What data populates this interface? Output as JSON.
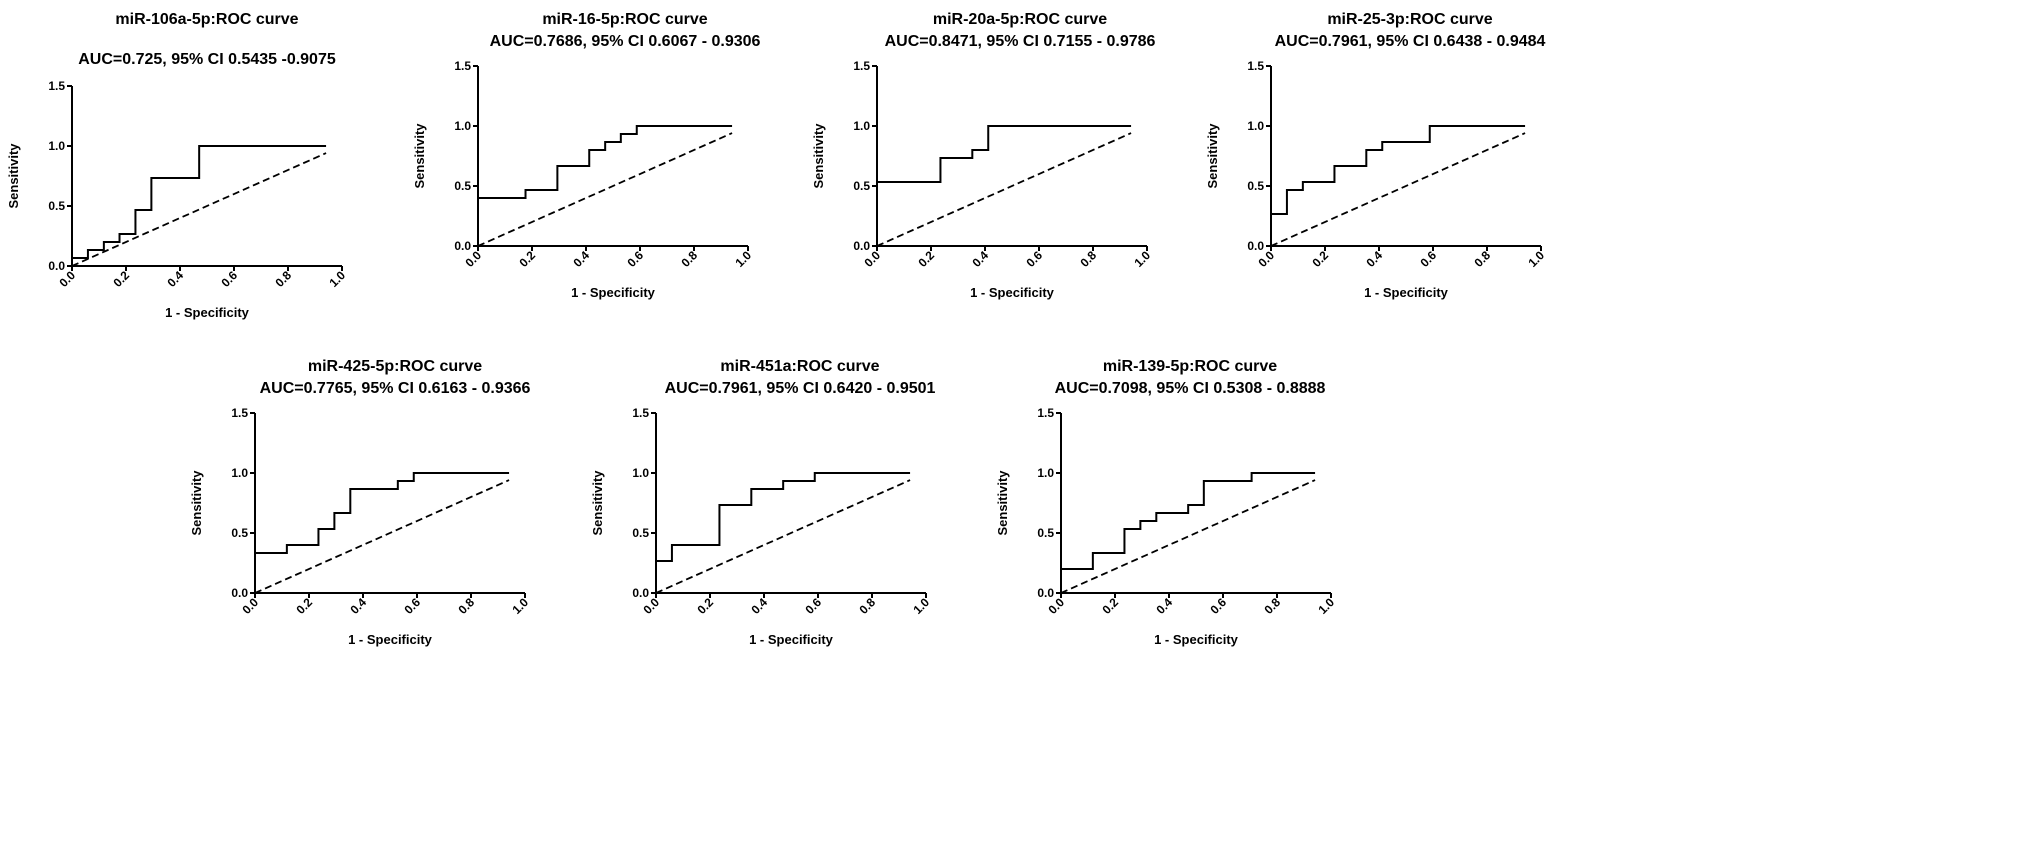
{
  "chart_data": [
    {
      "type": "line",
      "title": "miR-106a-5p:ROC curve",
      "subtitle": "AUC=0.725, 95% CI 0.5435 -0.9075",
      "xlabel": "1 - Specificity",
      "ylabel": "Sensitivity",
      "xlim": [
        0,
        1.0
      ],
      "ylim": [
        0,
        1.5
      ],
      "xticks": [
        "0.0",
        "0.2",
        "0.4",
        "0.6",
        "0.8",
        "1.0"
      ],
      "yticks": [
        "0.0",
        "0.5",
        "1.0",
        "1.5"
      ],
      "roc": [
        [
          0,
          0
        ],
        [
          0,
          0.067
        ],
        [
          0.059,
          0.067
        ],
        [
          0.059,
          0.133
        ],
        [
          0.118,
          0.133
        ],
        [
          0.118,
          0.2
        ],
        [
          0.176,
          0.2
        ],
        [
          0.176,
          0.267
        ],
        [
          0.235,
          0.267
        ],
        [
          0.235,
          0.467
        ],
        [
          0.294,
          0.467
        ],
        [
          0.294,
          0.733
        ],
        [
          0.471,
          0.733
        ],
        [
          0.471,
          1
        ],
        [
          0.941,
          1
        ]
      ],
      "reference": [
        [
          0,
          0
        ],
        [
          0.941,
          0.941
        ]
      ]
    },
    {
      "type": "line",
      "title": "miR-16-5p:ROC curve",
      "subtitle": "AUC=0.7686, 95% CI 0.6067 - 0.9306",
      "xlabel": "1 - Specificity",
      "ylabel": "Sensitivity",
      "xlim": [
        0,
        1.0
      ],
      "ylim": [
        0,
        1.5
      ],
      "xticks": [
        "0.0",
        "0.2",
        "0.4",
        "0.6",
        "0.8",
        "1.0"
      ],
      "yticks": [
        "0.0",
        "0.5",
        "1.0",
        "1.5"
      ],
      "roc": [
        [
          0,
          0
        ],
        [
          0,
          0.4
        ],
        [
          0.176,
          0.4
        ],
        [
          0.176,
          0.467
        ],
        [
          0.294,
          0.467
        ],
        [
          0.294,
          0.667
        ],
        [
          0.412,
          0.667
        ],
        [
          0.412,
          0.8
        ],
        [
          0.471,
          0.8
        ],
        [
          0.471,
          0.867
        ],
        [
          0.529,
          0.867
        ],
        [
          0.529,
          0.933
        ],
        [
          0.588,
          0.933
        ],
        [
          0.588,
          1
        ],
        [
          0.941,
          1
        ]
      ],
      "reference": [
        [
          0,
          0
        ],
        [
          0.941,
          0.941
        ]
      ]
    },
    {
      "type": "line",
      "title": "miR-20a-5p:ROC curve",
      "subtitle": "AUC=0.8471, 95% CI 0.7155 - 0.9786",
      "xlabel": "1 - Specificity",
      "ylabel": "Sensitivity",
      "xlim": [
        0,
        1.0
      ],
      "ylim": [
        0,
        1.5
      ],
      "xticks": [
        "0.0",
        "0.2",
        "0.4",
        "0.6",
        "0.8",
        "1.0"
      ],
      "yticks": [
        "0.0",
        "0.5",
        "1.0",
        "1.5"
      ],
      "roc": [
        [
          0,
          0
        ],
        [
          0,
          0.533
        ],
        [
          0.235,
          0.533
        ],
        [
          0.235,
          0.733
        ],
        [
          0.353,
          0.733
        ],
        [
          0.353,
          0.8
        ],
        [
          0.412,
          0.8
        ],
        [
          0.412,
          1
        ],
        [
          0.941,
          1
        ]
      ],
      "reference": [
        [
          0,
          0
        ],
        [
          0.941,
          0.941
        ]
      ]
    },
    {
      "type": "line",
      "title": "miR-25-3p:ROC curve",
      "subtitle": "AUC=0.7961, 95% CI 0.6438 - 0.9484",
      "xlabel": "1 - Specificity",
      "ylabel": "Sensitivity",
      "xlim": [
        0,
        1.0
      ],
      "ylim": [
        0,
        1.5
      ],
      "xticks": [
        "0.0",
        "0.2",
        "0.4",
        "0.6",
        "0.8",
        "1.0"
      ],
      "yticks": [
        "0.0",
        "0.5",
        "1.0",
        "1.5"
      ],
      "roc": [
        [
          0,
          0
        ],
        [
          0,
          0.267
        ],
        [
          0.059,
          0.267
        ],
        [
          0.059,
          0.467
        ],
        [
          0.118,
          0.467
        ],
        [
          0.118,
          0.533
        ],
        [
          0.235,
          0.533
        ],
        [
          0.235,
          0.667
        ],
        [
          0.353,
          0.667
        ],
        [
          0.353,
          0.8
        ],
        [
          0.412,
          0.8
        ],
        [
          0.412,
          0.867
        ],
        [
          0.588,
          0.867
        ],
        [
          0.588,
          1
        ],
        [
          0.941,
          1
        ]
      ],
      "reference": [
        [
          0,
          0
        ],
        [
          0.941,
          0.941
        ]
      ]
    },
    {
      "type": "line",
      "title": "miR-425-5p:ROC curve",
      "subtitle": "AUC=0.7765, 95% CI 0.6163 - 0.9366",
      "xlabel": "1 - Specificity",
      "ylabel": "Sensitivity",
      "xlim": [
        0,
        1.0
      ],
      "ylim": [
        0,
        1.5
      ],
      "xticks": [
        "0.0",
        "0.2",
        "0.4",
        "0.6",
        "0.8",
        "1.0"
      ],
      "yticks": [
        "0.0",
        "0.5",
        "1.0",
        "1.5"
      ],
      "roc": [
        [
          0,
          0
        ],
        [
          0,
          0.333
        ],
        [
          0.118,
          0.333
        ],
        [
          0.118,
          0.4
        ],
        [
          0.235,
          0.4
        ],
        [
          0.235,
          0.533
        ],
        [
          0.294,
          0.533
        ],
        [
          0.294,
          0.667
        ],
        [
          0.353,
          0.667
        ],
        [
          0.353,
          0.867
        ],
        [
          0.529,
          0.867
        ],
        [
          0.529,
          0.933
        ],
        [
          0.588,
          0.933
        ],
        [
          0.588,
          1
        ],
        [
          0.941,
          1
        ]
      ],
      "reference": [
        [
          0,
          0
        ],
        [
          0.941,
          0.941
        ]
      ]
    },
    {
      "type": "line",
      "title": "miR-451a:ROC curve",
      "subtitle": "AUC=0.7961, 95% CI 0.6420 - 0.9501",
      "xlabel": "1 - Specificity",
      "ylabel": "Sensitivity",
      "xlim": [
        0,
        1.0
      ],
      "ylim": [
        0,
        1.5
      ],
      "xticks": [
        "0.0",
        "0.2",
        "0.4",
        "0.6",
        "0.8",
        "1.0"
      ],
      "yticks": [
        "0.0",
        "0.5",
        "1.0",
        "1.5"
      ],
      "roc": [
        [
          0,
          0
        ],
        [
          0,
          0.267
        ],
        [
          0.059,
          0.267
        ],
        [
          0.059,
          0.4
        ],
        [
          0.235,
          0.4
        ],
        [
          0.235,
          0.733
        ],
        [
          0.353,
          0.733
        ],
        [
          0.353,
          0.867
        ],
        [
          0.471,
          0.867
        ],
        [
          0.471,
          0.933
        ],
        [
          0.588,
          0.933
        ],
        [
          0.588,
          1
        ],
        [
          0.941,
          1
        ]
      ],
      "reference": [
        [
          0,
          0
        ],
        [
          0.941,
          0.941
        ]
      ]
    },
    {
      "type": "line",
      "title": "miR-139-5p:ROC curve",
      "subtitle": "AUC=0.7098, 95% CI 0.5308 - 0.8888",
      "xlabel": "1 - Specificity",
      "ylabel": "Sensitivity",
      "xlim": [
        0,
        1.0
      ],
      "ylim": [
        0,
        1.5
      ],
      "xticks": [
        "0.0",
        "0.2",
        "0.4",
        "0.6",
        "0.8",
        "1.0"
      ],
      "yticks": [
        "0.0",
        "0.5",
        "1.0",
        "1.5"
      ],
      "roc": [
        [
          0,
          0
        ],
        [
          0,
          0.2
        ],
        [
          0.118,
          0.2
        ],
        [
          0.118,
          0.333
        ],
        [
          0.235,
          0.333
        ],
        [
          0.235,
          0.533
        ],
        [
          0.294,
          0.533
        ],
        [
          0.294,
          0.6
        ],
        [
          0.353,
          0.6
        ],
        [
          0.353,
          0.667
        ],
        [
          0.471,
          0.667
        ],
        [
          0.471,
          0.733
        ],
        [
          0.529,
          0.733
        ],
        [
          0.529,
          0.933
        ],
        [
          0.706,
          0.933
        ],
        [
          0.706,
          1
        ],
        [
          0.941,
          1
        ]
      ],
      "reference": [
        [
          0,
          0
        ],
        [
          0.941,
          0.941
        ]
      ]
    }
  ]
}
